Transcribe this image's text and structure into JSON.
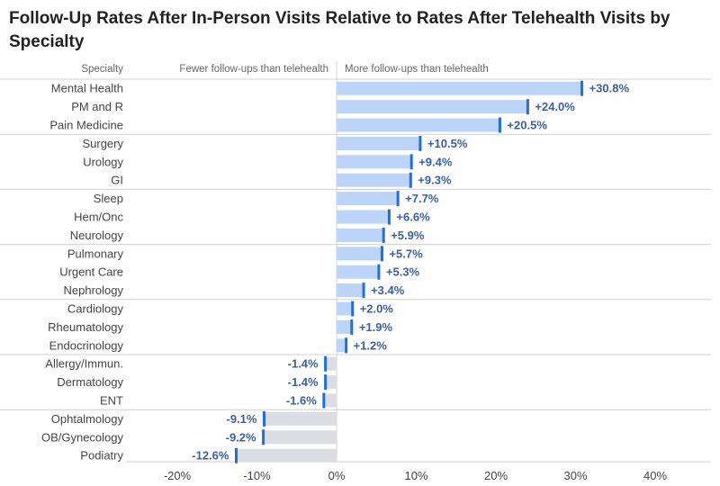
{
  "chart_data": {
    "type": "bar",
    "orientation": "horizontal",
    "title": "Follow-Up Rates After In-Person Visits Relative to Rates After Telehealth Visits by Specialty",
    "column_header": "Specialty",
    "negative_label": "Fewer follow-ups than telehealth",
    "positive_label": "More follow-ups than telehealth",
    "xlim": [
      -25,
      45
    ],
    "x_ticks": [
      -20,
      -10,
      0,
      10,
      20,
      30,
      40
    ],
    "x_tick_labels": [
      "-20%",
      "-10%",
      "0%",
      "10%",
      "20%",
      "30%",
      "40%"
    ],
    "categories": [
      "Mental Health",
      "PM and R",
      "Pain Medicine",
      "Surgery",
      "Urology",
      "GI",
      "Sleep",
      "Hem/Onc",
      "Neurology",
      "Pulmonary",
      "Urgent Care",
      "Nephrology",
      "Cardiology",
      "Rheumatology",
      "Endocrinology",
      "Allergy/Immun.",
      "Dermatology",
      "ENT",
      "Ophtalmology",
      "OB/Gynecology",
      "Podiatry"
    ],
    "values": [
      30.8,
      24.0,
      20.5,
      10.5,
      9.4,
      9.3,
      7.7,
      6.6,
      5.9,
      5.7,
      5.3,
      3.4,
      2.0,
      1.9,
      1.2,
      -1.4,
      -1.4,
      -1.6,
      -9.1,
      -9.2,
      -12.6
    ],
    "value_labels": [
      "+30.8%",
      "+24.0%",
      "+20.5%",
      "+10.5%",
      "+9.4%",
      "+9.3%",
      "+7.7%",
      "+6.6%",
      "+5.9%",
      "+5.7%",
      "+5.3%",
      "+3.4%",
      "+2.0%",
      "+1.9%",
      "+1.2%",
      "-1.4%",
      "-1.4%",
      "-1.6%",
      "-9.1%",
      "-9.2%",
      "-12.6%"
    ],
    "group_separators_after_index": [
      2,
      5,
      8,
      11,
      14,
      17
    ],
    "colors": {
      "positive_bar": "#bcd4f8",
      "negative_bar": "#dcdde3",
      "bar_end_marker": "#1f6fe0",
      "value_text": "#3a5fa6",
      "grid": "#d4d4d4",
      "separator": "#d0d0d0"
    }
  }
}
